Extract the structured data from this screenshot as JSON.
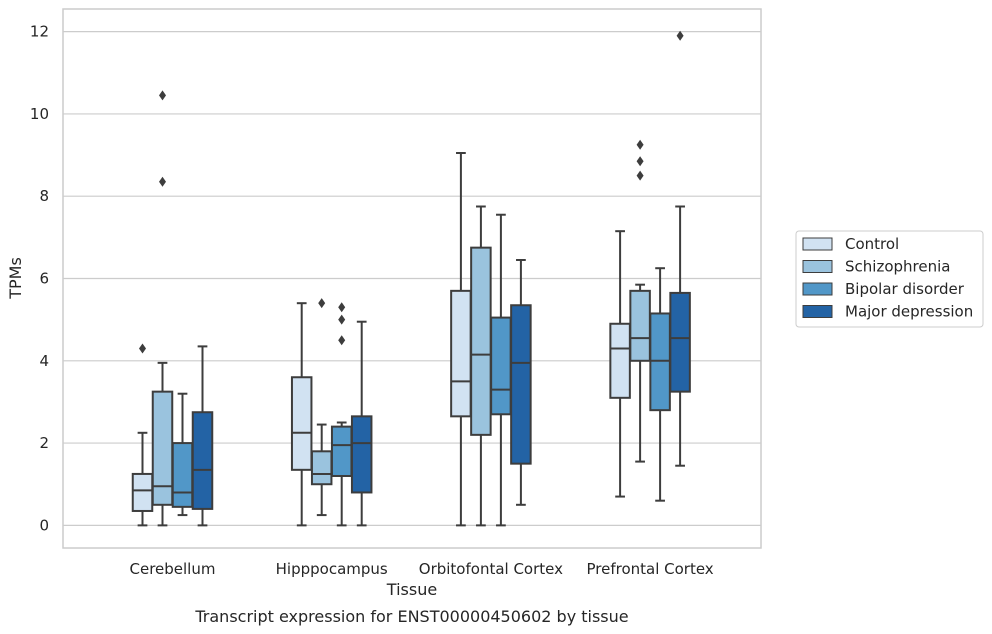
{
  "chart_data": {
    "type": "box",
    "xlabel": "Tissue",
    "ylabel": "TPMs",
    "caption": "Transcript expression for ENST00000450602 by tissue",
    "ylim": [
      -0.55,
      12.55
    ],
    "yticks": [
      0,
      2,
      4,
      6,
      8,
      10,
      12
    ],
    "grid": "horizontal",
    "legend_position": "right",
    "categories": [
      "Cerebellum",
      "Hipppocampus",
      "Orbitofontal Cortex",
      "Prefrontal Cortex"
    ],
    "series": [
      {
        "name": "Control",
        "color": "#d1e2f2",
        "boxes": [
          {
            "whisker_low": 0.0,
            "q1": 0.35,
            "median": 0.85,
            "q3": 1.25,
            "whisker_high": 2.25,
            "outliers": [
              4.3
            ]
          },
          {
            "whisker_low": 0.0,
            "q1": 1.35,
            "median": 2.25,
            "q3": 3.6,
            "whisker_high": 5.4,
            "outliers": []
          },
          {
            "whisker_low": 0.0,
            "q1": 2.65,
            "median": 3.5,
            "q3": 5.7,
            "whisker_high": 9.05,
            "outliers": []
          },
          {
            "whisker_low": 0.7,
            "q1": 3.1,
            "median": 4.3,
            "q3": 4.9,
            "whisker_high": 7.15,
            "outliers": []
          }
        ]
      },
      {
        "name": "Schizophrenia",
        "color": "#9ac3de",
        "boxes": [
          {
            "whisker_low": 0.0,
            "q1": 0.5,
            "median": 0.95,
            "q3": 3.25,
            "whisker_high": 3.95,
            "outliers": [
              10.45,
              8.35
            ]
          },
          {
            "whisker_low": 0.25,
            "q1": 1.0,
            "median": 1.25,
            "q3": 1.8,
            "whisker_high": 2.45,
            "outliers": [
              5.4
            ]
          },
          {
            "whisker_low": 0.0,
            "q1": 2.2,
            "median": 4.15,
            "q3": 6.75,
            "whisker_high": 7.75,
            "outliers": []
          },
          {
            "whisker_low": 1.55,
            "q1": 4.0,
            "median": 4.55,
            "q3": 5.7,
            "whisker_high": 5.85,
            "outliers": [
              9.25,
              8.85,
              8.5
            ]
          }
        ]
      },
      {
        "name": "Bipolar disorder",
        "color": "#5197c8",
        "boxes": [
          {
            "whisker_low": 0.25,
            "q1": 0.45,
            "median": 0.8,
            "q3": 2.0,
            "whisker_high": 3.2,
            "outliers": []
          },
          {
            "whisker_low": 0.0,
            "q1": 1.2,
            "median": 1.95,
            "q3": 2.4,
            "whisker_high": 2.5,
            "outliers": [
              5.3,
              5.0,
              4.5
            ]
          },
          {
            "whisker_low": 0.0,
            "q1": 2.7,
            "median": 3.3,
            "q3": 5.05,
            "whisker_high": 7.55,
            "outliers": []
          },
          {
            "whisker_low": 0.6,
            "q1": 2.8,
            "median": 4.0,
            "q3": 5.15,
            "whisker_high": 6.25,
            "outliers": []
          }
        ]
      },
      {
        "name": "Major depression",
        "color": "#2363a5",
        "boxes": [
          {
            "whisker_low": 0.0,
            "q1": 0.4,
            "median": 1.35,
            "q3": 2.75,
            "whisker_high": 4.35,
            "outliers": []
          },
          {
            "whisker_low": 0.0,
            "q1": 0.8,
            "median": 2.0,
            "q3": 2.65,
            "whisker_high": 4.95,
            "outliers": []
          },
          {
            "whisker_low": 0.5,
            "q1": 1.5,
            "median": 3.95,
            "q3": 5.35,
            "whisker_high": 6.45,
            "outliers": []
          },
          {
            "whisker_low": 1.45,
            "q1": 3.25,
            "median": 4.55,
            "q3": 5.65,
            "whisker_high": 7.75,
            "outliers": [
              11.9
            ]
          }
        ]
      }
    ]
  }
}
